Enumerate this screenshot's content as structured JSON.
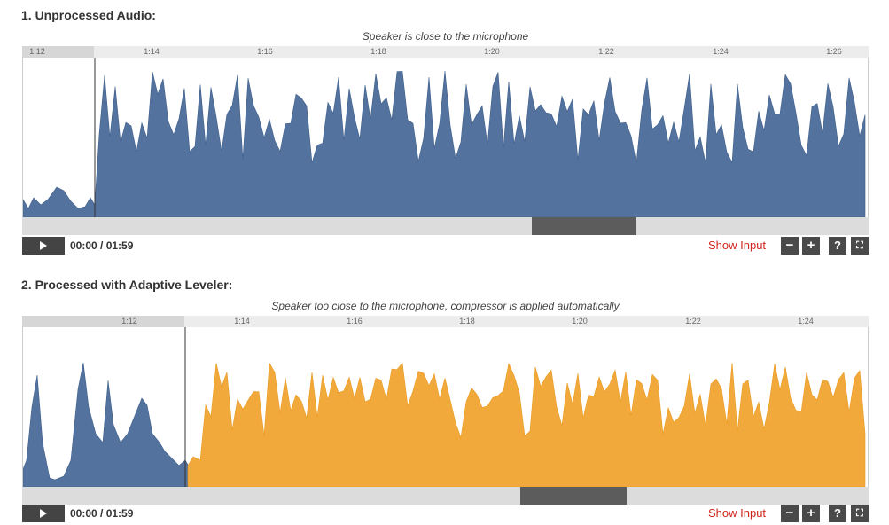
{
  "section1": {
    "title": "1. Unprocessed Audio:",
    "subtitle": "Speaker is close to the microphone",
    "timeline_labels": [
      "1:12",
      "1:14",
      "1:16",
      "1:18",
      "1:20",
      "1:22",
      "1:24",
      "1:26"
    ],
    "time_readout": "00:00 / 01:59",
    "show_input": "Show Input",
    "controls": {
      "zoom_out": "−",
      "zoom_in": "+",
      "help": "?",
      "fullscreen": "⛶"
    },
    "icons": {
      "play": "play-icon",
      "zoom_out": "minus-icon",
      "zoom_in": "plus-icon",
      "help": "question-icon",
      "fullscreen": "fullscreen-icon"
    },
    "colors": {
      "waveform": "#54729e",
      "scroll_thumb": "#5c5c5c"
    }
  },
  "section2": {
    "title": "2. Processed with Adaptive Leveler:",
    "subtitle": "Speaker too close to the microphone, compressor is applied automatically",
    "timeline_labels": [
      "1:12",
      "1:14",
      "1:16",
      "1:18",
      "1:20",
      "1:22",
      "1:24"
    ],
    "time_readout": "00:00 / 01:59",
    "show_input": "Show Input",
    "controls": {
      "zoom_out": "−",
      "zoom_in": "+",
      "help": "?",
      "fullscreen": "⛶"
    },
    "icons": {
      "play": "play-icon",
      "zoom_out": "minus-icon",
      "zoom_in": "plus-icon",
      "help": "question-icon",
      "fullscreen": "fullscreen-icon"
    },
    "colors": {
      "waveform_unprocessed": "#54729e",
      "waveform_processed": "#f2a93b",
      "scroll_thumb": "#5c5c5c"
    }
  }
}
